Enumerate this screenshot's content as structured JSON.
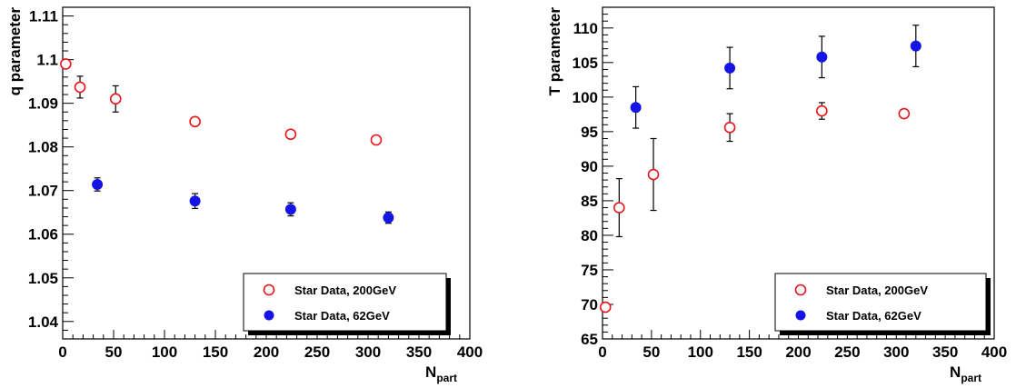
{
  "chart_data": [
    {
      "type": "scatter",
      "xlabel": "N",
      "xlabel_sub": "part",
      "ylabel": "q parameter",
      "xlim": [
        0,
        400
      ],
      "ylim": [
        1.036,
        1.112
      ],
      "xticks": [
        "0",
        "50",
        "100",
        "150",
        "200",
        "250",
        "300",
        "350",
        "400"
      ],
      "yticks": [
        "1.04",
        "1.05",
        "1.06",
        "1.07",
        "1.08",
        "1.09",
        "1.1",
        "1.11"
      ],
      "ytick_values": [
        1.04,
        1.05,
        1.06,
        1.07,
        1.08,
        1.09,
        1.1,
        1.11
      ],
      "grid": false,
      "legend_position": "bottom-right",
      "series": [
        {
          "name": "Star Data, 200GeV",
          "marker": "open-circle",
          "color": "#e8141a",
          "points": [
            {
              "x": 3,
              "y": 1.099,
              "err": 0.001
            },
            {
              "x": 17,
              "y": 1.0937,
              "err": 0.0025
            },
            {
              "x": 52,
              "y": 1.091,
              "err": 0.003
            },
            {
              "x": 130,
              "y": 1.0858,
              "err": 0.001
            },
            {
              "x": 224,
              "y": 1.0829,
              "err": 0.0007
            },
            {
              "x": 308,
              "y": 1.0816,
              "err": 0.0006
            }
          ]
        },
        {
          "name": "Star Data, 62GeV",
          "marker": "filled-circle",
          "color": "#1414e6",
          "points": [
            {
              "x": 34,
              "y": 1.0714,
              "err": 0.0015
            },
            {
              "x": 130,
              "y": 1.0676,
              "err": 0.0017
            },
            {
              "x": 224,
              "y": 1.0657,
              "err": 0.0015
            },
            {
              "x": 320,
              "y": 1.0638,
              "err": 0.0013
            }
          ]
        }
      ]
    },
    {
      "type": "scatter",
      "xlabel": "N",
      "xlabel_sub": "part",
      "ylabel": "T parameter",
      "xlim": [
        0,
        400
      ],
      "ylim": [
        65,
        113
      ],
      "xticks": [
        "0",
        "50",
        "100",
        "150",
        "200",
        "250",
        "300",
        "350",
        "400"
      ],
      "yticks": [
        "65",
        "70",
        "75",
        "80",
        "85",
        "90",
        "95",
        "100",
        "105",
        "110"
      ],
      "ytick_values": [
        65,
        70,
        75,
        80,
        85,
        90,
        95,
        100,
        105,
        110
      ],
      "grid": false,
      "legend_position": "bottom-right",
      "series": [
        {
          "name": "Star Data, 200GeV",
          "marker": "open-circle",
          "color": "#e8141a",
          "points": [
            {
              "x": 3,
              "y": 69.6,
              "err": 0.6
            },
            {
              "x": 17,
              "y": 84.0,
              "err": 4.2
            },
            {
              "x": 52,
              "y": 88.8,
              "err": 5.2
            },
            {
              "x": 130,
              "y": 95.6,
              "err": 2.0
            },
            {
              "x": 224,
              "y": 98.0,
              "err": 1.2
            },
            {
              "x": 308,
              "y": 97.6,
              "err": 0.6
            }
          ]
        },
        {
          "name": "Star Data, 62GeV",
          "marker": "filled-circle",
          "color": "#1414e6",
          "points": [
            {
              "x": 34,
              "y": 98.5,
              "err": 3.0
            },
            {
              "x": 130,
              "y": 104.2,
              "err": 3.0
            },
            {
              "x": 224,
              "y": 105.8,
              "err": 3.0
            },
            {
              "x": 320,
              "y": 107.4,
              "err": 3.0
            }
          ]
        }
      ]
    }
  ]
}
